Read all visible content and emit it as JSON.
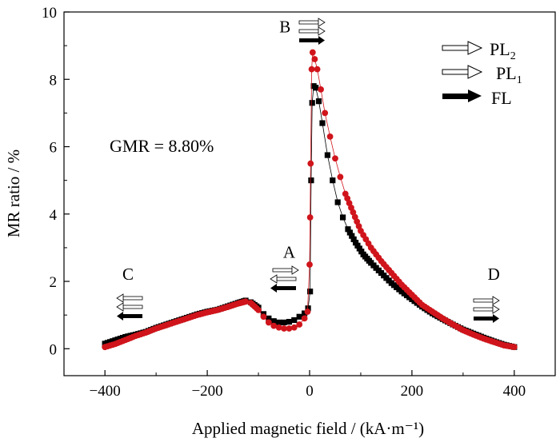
{
  "chart_data": {
    "type": "scatter",
    "xlabel": "Applied magnetic field / (kA·m⁻¹)",
    "ylabel": "MR ratio / %",
    "xlim": [
      -480,
      480
    ],
    "ylim": [
      -0.8,
      10
    ],
    "xticks": [
      -400,
      -200,
      0,
      200,
      400
    ],
    "xtick_labels": [
      "−400",
      "−200",
      "0",
      "200",
      "400"
    ],
    "yticks": [
      0,
      2,
      4,
      6,
      8,
      10
    ],
    "ytick_labels": [
      "0",
      "2",
      "4",
      "6",
      "8",
      "10"
    ],
    "annotation": "GMR = 8.80%",
    "state_labels": [
      {
        "text": "A",
        "x": -40,
        "y": 2.7
      },
      {
        "text": "B",
        "x": -48,
        "y": 9.4
      },
      {
        "text": "C",
        "x": -355,
        "y": 2.05
      },
      {
        "text": "D",
        "x": 360,
        "y": 2.05
      }
    ],
    "legend": {
      "position": "top-right",
      "entries": [
        {
          "label_main": "PL",
          "label_sub": "2",
          "style": "outline"
        },
        {
          "label_main": "PL",
          "label_sub": "1",
          "style": "outline"
        },
        {
          "label_main": "FL",
          "label_sub": "",
          "style": "solid"
        }
      ]
    },
    "series": [
      {
        "marker": "square",
        "color": "#000000",
        "points": [
          [
            -400,
            0.15
          ],
          [
            -380,
            0.25
          ],
          [
            -360,
            0.35
          ],
          [
            -340,
            0.42
          ],
          [
            -320,
            0.5
          ],
          [
            -300,
            0.62
          ],
          [
            -280,
            0.72
          ],
          [
            -260,
            0.82
          ],
          [
            -240,
            0.92
          ],
          [
            -220,
            1.02
          ],
          [
            -200,
            1.1
          ],
          [
            -180,
            1.16
          ],
          [
            -160,
            1.26
          ],
          [
            -140,
            1.36
          ],
          [
            -125,
            1.43
          ],
          [
            -115,
            1.38
          ],
          [
            -100,
            1.22
          ],
          [
            -90,
            1.03
          ],
          [
            -80,
            0.9
          ],
          [
            -70,
            0.82
          ],
          [
            -60,
            0.78
          ],
          [
            -50,
            0.78
          ],
          [
            -40,
            0.8
          ],
          [
            -30,
            0.85
          ],
          [
            -20,
            0.95
          ],
          [
            -10,
            1.05
          ],
          [
            -3,
            1.2
          ],
          [
            1,
            1.7
          ],
          [
            3,
            5.0
          ],
          [
            5,
            7.3
          ],
          [
            8,
            7.8
          ],
          [
            12,
            7.75
          ],
          [
            18,
            7.35
          ],
          [
            25,
            6.7
          ],
          [
            35,
            5.75
          ],
          [
            45,
            5.0
          ],
          [
            55,
            4.35
          ],
          [
            65,
            3.9
          ],
          [
            75,
            3.55
          ],
          [
            90,
            3.15
          ],
          [
            105,
            2.8
          ],
          [
            120,
            2.55
          ],
          [
            140,
            2.25
          ],
          [
            160,
            1.95
          ],
          [
            180,
            1.7
          ],
          [
            200,
            1.47
          ],
          [
            220,
            1.25
          ],
          [
            240,
            1.05
          ],
          [
            260,
            0.88
          ],
          [
            280,
            0.72
          ],
          [
            300,
            0.57
          ],
          [
            320,
            0.45
          ],
          [
            340,
            0.33
          ],
          [
            360,
            0.22
          ],
          [
            380,
            0.12
          ],
          [
            400,
            0.05
          ]
        ]
      },
      {
        "marker": "circle",
        "color": "#d0141b",
        "points": [
          [
            -400,
            0.05
          ],
          [
            -380,
            0.14
          ],
          [
            -360,
            0.26
          ],
          [
            -340,
            0.38
          ],
          [
            -320,
            0.48
          ],
          [
            -300,
            0.6
          ],
          [
            -280,
            0.7
          ],
          [
            -260,
            0.8
          ],
          [
            -240,
            0.9
          ],
          [
            -220,
            1.0
          ],
          [
            -200,
            1.08
          ],
          [
            -180,
            1.15
          ],
          [
            -160,
            1.24
          ],
          [
            -140,
            1.34
          ],
          [
            -125,
            1.4
          ],
          [
            -115,
            1.36
          ],
          [
            -100,
            1.15
          ],
          [
            -90,
            0.95
          ],
          [
            -80,
            0.78
          ],
          [
            -70,
            0.68
          ],
          [
            -60,
            0.63
          ],
          [
            -50,
            0.6
          ],
          [
            -40,
            0.6
          ],
          [
            -30,
            0.63
          ],
          [
            -20,
            0.72
          ],
          [
            -10,
            0.9
          ],
          [
            -4,
            1.1
          ],
          [
            0,
            2.5
          ],
          [
            1,
            3.9
          ],
          [
            2,
            5.5
          ],
          [
            4,
            8.3
          ],
          [
            6,
            8.8
          ],
          [
            10,
            8.6
          ],
          [
            15,
            8.3
          ],
          [
            22,
            7.7
          ],
          [
            30,
            7.0
          ],
          [
            40,
            6.3
          ],
          [
            50,
            5.65
          ],
          [
            60,
            5.1
          ],
          [
            70,
            4.6
          ],
          [
            85,
            4.05
          ],
          [
            100,
            3.5
          ],
          [
            120,
            3.0
          ],
          [
            140,
            2.6
          ],
          [
            160,
            2.25
          ],
          [
            180,
            1.9
          ],
          [
            200,
            1.6
          ],
          [
            220,
            1.3
          ],
          [
            240,
            1.1
          ],
          [
            260,
            0.9
          ],
          [
            280,
            0.72
          ],
          [
            300,
            0.55
          ],
          [
            320,
            0.42
          ],
          [
            340,
            0.3
          ],
          [
            360,
            0.2
          ],
          [
            380,
            0.1
          ],
          [
            400,
            0.05
          ]
        ]
      }
    ]
  }
}
